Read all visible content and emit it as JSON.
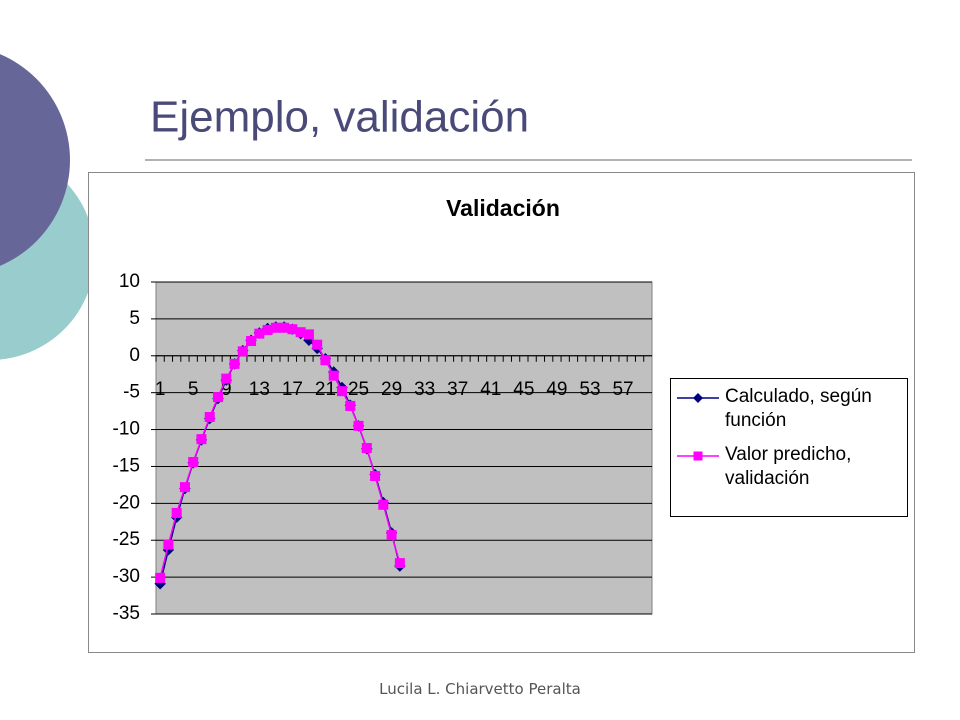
{
  "slide_title": "Ejemplo, validación",
  "footer": "Lucila L. Chiarvetto Peralta",
  "chart_data": {
    "type": "line",
    "title": "Validación",
    "categories": [
      "1",
      null,
      null,
      null,
      "5",
      null,
      null,
      null,
      "9",
      null,
      null,
      null,
      "13",
      null,
      null,
      null,
      "17",
      null,
      null,
      null,
      "21",
      null,
      null,
      null,
      "25",
      null,
      null,
      null,
      "29",
      null,
      null,
      null,
      "33",
      null,
      null,
      null,
      "37",
      null,
      null,
      null,
      "41",
      null,
      null,
      null,
      "45",
      null,
      null,
      null,
      "49",
      null,
      null,
      null,
      "53",
      null,
      null,
      null,
      "57",
      null,
      null,
      null
    ],
    "series": [
      {
        "name": "Calculado, según función",
        "color": "#000080",
        "marker": "diamond",
        "values": [
          -30.9,
          -26.3,
          -21.9,
          -18.0,
          -14.5,
          -11.4,
          -8.5,
          -5.8,
          -3.3,
          -1.1,
          0.7,
          2.1,
          3.1,
          3.7,
          3.9,
          3.9,
          3.6,
          3.0,
          2.1,
          1.0,
          -0.4,
          -2.2,
          -4.3,
          -6.7,
          -9.5,
          -12.6,
          -16.1,
          -19.9,
          -24.0,
          -28.5,
          null,
          null,
          null,
          null,
          null,
          null,
          null,
          null,
          null,
          null,
          null,
          null,
          null,
          null,
          null,
          null,
          null,
          null,
          null,
          null,
          null,
          null,
          null,
          null,
          null,
          null,
          null,
          null,
          null,
          null
        ]
      },
      {
        "name": "Valor predicho, validación",
        "color": "#ff00ff",
        "marker": "square",
        "values": [
          -30.1,
          -25.6,
          -21.3,
          -17.8,
          -14.4,
          -11.3,
          -8.3,
          -5.6,
          -3.1,
          -1.1,
          0.6,
          2.0,
          3.0,
          3.5,
          3.8,
          3.8,
          3.6,
          3.2,
          2.9,
          1.5,
          -0.6,
          -2.7,
          -4.8,
          -6.8,
          -9.5,
          -12.5,
          -16.3,
          -20.2,
          -24.3,
          -28.1,
          null,
          null,
          null,
          null,
          null,
          null,
          null,
          null,
          null,
          null,
          null,
          null,
          null,
          null,
          null,
          null,
          null,
          null,
          null,
          null,
          null,
          null,
          null,
          null,
          null,
          null,
          null,
          null,
          null,
          null
        ]
      }
    ],
    "ylim": [
      -35,
      10
    ],
    "yticks": [
      -35,
      -30,
      -25,
      -20,
      -15,
      -10,
      -5,
      0,
      5,
      10
    ],
    "grid": true,
    "plot_background": "#c0c0c0",
    "legend": "right"
  }
}
